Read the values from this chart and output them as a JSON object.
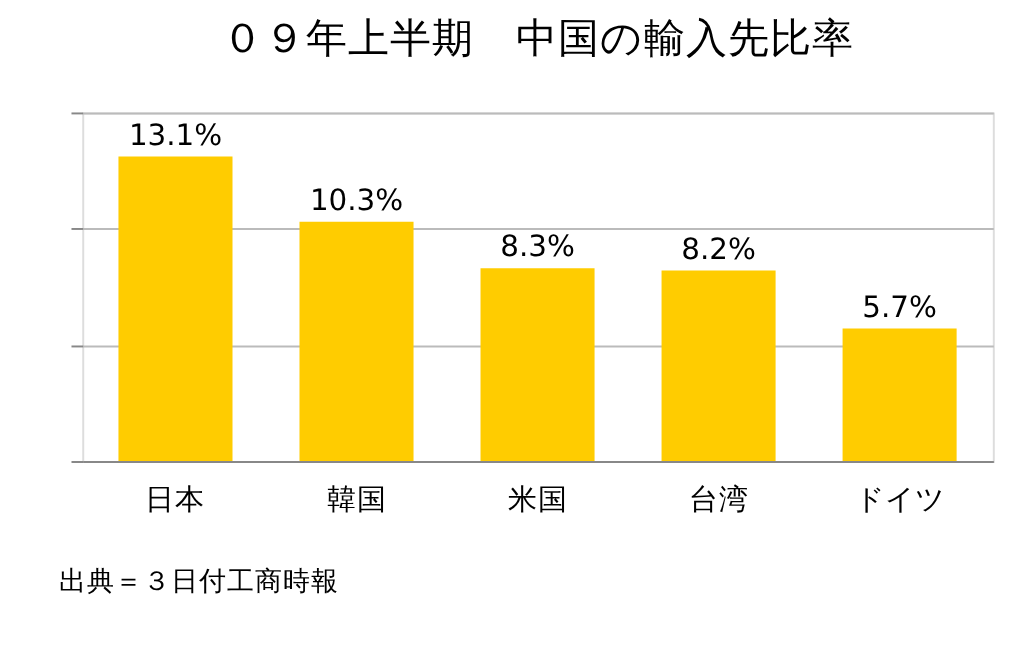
{
  "chart_data": {
    "type": "bar",
    "title": "０９年上半期　中国の輸入先比率",
    "categories": [
      "日本",
      "韓国",
      "米国",
      "台湾",
      "ドイツ"
    ],
    "values": [
      13.1,
      10.3,
      8.3,
      8.2,
      5.7
    ],
    "value_labels": [
      "13.1%",
      "10.3%",
      "8.3%",
      "8.2%",
      "5.7%"
    ],
    "color": "#ffcc00",
    "ylim": [
      0,
      15
    ],
    "yticks": [
      {
        "value": 0,
        "label": null
      },
      {
        "value": 5,
        "label": null
      },
      {
        "value": 10,
        "label": null
      },
      {
        "value": 15,
        "label": null
      }
    ],
    "tick_labels": "x",
    "grid": "y",
    "annotations": [
      "出典＝３日付工商時報"
    ]
  }
}
